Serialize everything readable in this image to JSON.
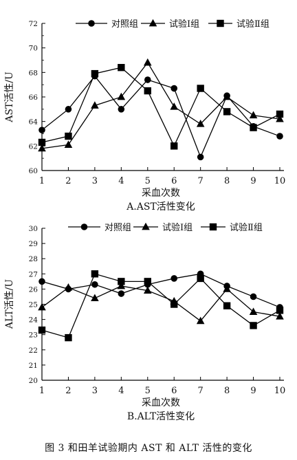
{
  "figure_caption": "图 3  和田羊试验期内 AST 和 ALT 活性的变化",
  "chart_data": [
    {
      "type": "line",
      "title": "A.AST活性变化",
      "xlabel": "采血次数",
      "ylabel": "AST活性/U",
      "x": [
        1,
        2,
        3,
        4,
        5,
        6,
        7,
        8,
        9,
        10
      ],
      "xticks": [
        "1",
        "2",
        "3",
        "4",
        "5",
        "6",
        "7",
        "8",
        "9",
        "10"
      ],
      "ylim": [
        60,
        72
      ],
      "yticks": [
        "60",
        "62",
        "64",
        "66",
        "68",
        "70",
        "72"
      ],
      "legend_position": "top",
      "grid": false,
      "series": [
        {
          "name": "对照组",
          "marker": "circle",
          "values": [
            63.3,
            65.0,
            67.7,
            65.0,
            67.4,
            66.7,
            61.1,
            66.1,
            63.6,
            62.8
          ]
        },
        {
          "name": "试验Ⅰ组",
          "marker": "triangle",
          "values": [
            61.8,
            62.1,
            65.3,
            66.0,
            68.8,
            65.2,
            63.8,
            66.0,
            64.5,
            64.2
          ]
        },
        {
          "name": "试验Ⅱ组",
          "marker": "square",
          "values": [
            62.3,
            62.8,
            67.9,
            68.4,
            66.5,
            62.0,
            66.7,
            64.8,
            63.5,
            64.6
          ]
        }
      ]
    },
    {
      "type": "line",
      "title": "B.ALT活性变化",
      "xlabel": "采血次数",
      "ylabel": "ALT活性/U",
      "x": [
        1,
        2,
        3,
        4,
        5,
        6,
        7,
        8,
        9,
        10
      ],
      "xticks": [
        "1",
        "2",
        "3",
        "4",
        "5",
        "6",
        "7",
        "8",
        "9",
        "10"
      ],
      "ylim": [
        20,
        30
      ],
      "yticks": [
        "20",
        "21",
        "22",
        "23",
        "24",
        "25",
        "26",
        "27",
        "28",
        "29",
        "30"
      ],
      "legend_position": "top",
      "grid": false,
      "series": [
        {
          "name": "对照组",
          "marker": "circle",
          "values": [
            26.5,
            26.0,
            26.3,
            25.7,
            26.3,
            26.7,
            27.0,
            26.2,
            25.5,
            24.8
          ]
        },
        {
          "name": "试验Ⅰ组",
          "marker": "triangle",
          "values": [
            24.8,
            26.1,
            25.4,
            26.2,
            25.9,
            25.2,
            23.9,
            26.0,
            24.5,
            24.2
          ]
        },
        {
          "name": "试验Ⅱ组",
          "marker": "square",
          "values": [
            23.3,
            22.8,
            27.0,
            26.5,
            26.5,
            25.0,
            26.7,
            24.9,
            23.6,
            24.6
          ]
        }
      ]
    }
  ]
}
